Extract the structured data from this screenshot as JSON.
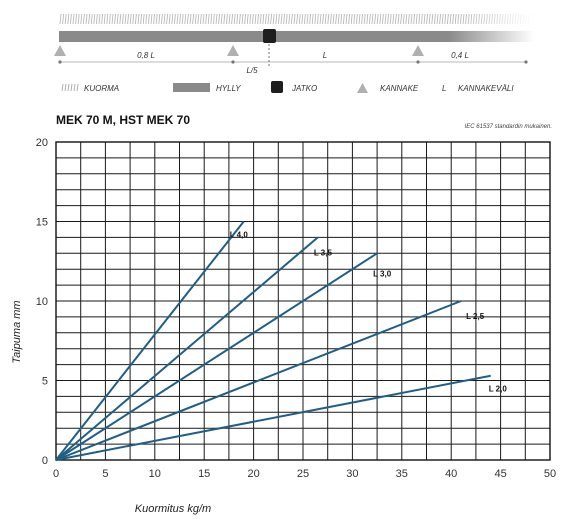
{
  "schematic": {
    "span_left": "0,8 L",
    "span_mid": "L",
    "span_right": "0,4 L",
    "quarter_label": "L/5",
    "colors": {
      "shelf": "#8a8a8a",
      "joint": "#1e1e1e",
      "support": "#b0b0b0",
      "load": "#b8b8b8"
    }
  },
  "legend": [
    {
      "icon": "load-hatch-icon",
      "label": "KUORMA"
    },
    {
      "icon": "shelf-bar-icon",
      "label": "HYLLY"
    },
    {
      "icon": "joint-square-icon",
      "label": "JATKO"
    },
    {
      "icon": "support-triangle-icon",
      "label": "KANNAKE"
    },
    {
      "icon": "span-letter-icon",
      "symbol": "L",
      "label": "KANNAKEVÄLI"
    }
  ],
  "chart_data": {
    "type": "line",
    "title": "MEK 70 M, HST MEK 70",
    "note": "IEC 61537 standardin mukainen.",
    "xlabel": "Kuormitus kg/m",
    "ylabel": "Taipuma mm",
    "xlim": [
      0,
      50
    ],
    "ylim": [
      0,
      20
    ],
    "x_ticks": [
      0,
      5,
      10,
      15,
      20,
      25,
      30,
      35,
      40,
      45,
      50
    ],
    "y_ticks": [
      0,
      5,
      10,
      15,
      20
    ],
    "grid": true,
    "line_color": "#1f5f86",
    "series": [
      {
        "name": "L 4,0",
        "points": [
          [
            0,
            0
          ],
          [
            19,
            15
          ]
        ]
      },
      {
        "name": "L 3,5",
        "points": [
          [
            0,
            0
          ],
          [
            26.5,
            14
          ]
        ]
      },
      {
        "name": "L 3,0",
        "points": [
          [
            0,
            0
          ],
          [
            32.5,
            13
          ]
        ]
      },
      {
        "name": "L 2,5",
        "points": [
          [
            0,
            0
          ],
          [
            41,
            10
          ]
        ]
      },
      {
        "name": "L 2,0",
        "points": [
          [
            0,
            0
          ],
          [
            44,
            5.3
          ]
        ]
      }
    ]
  }
}
